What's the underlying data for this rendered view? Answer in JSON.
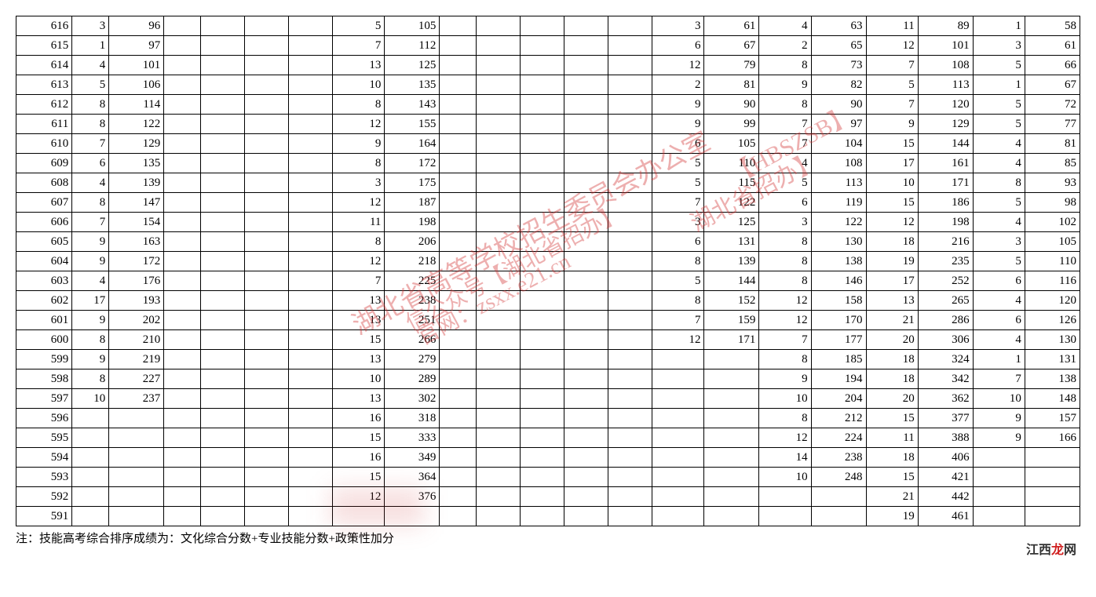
{
  "note": "注：技能高考综合排序成绩为：文化综合分数+专业技能分数+政策性加分",
  "col_widths_pct": [
    5.6,
    3.7,
    5.5,
    3.7,
    4.4,
    4.4,
    4.4,
    5.2,
    5.5,
    3.7,
    4.4,
    4.4,
    4.4,
    4.4,
    5.2,
    5.5,
    5.2,
    5.5,
    5.2,
    5.5,
    5.2,
    5.5
  ],
  "watermarks": {
    "w1": "湖北省高等学校招生委员会办公室",
    "w2": "信公众号【湖北省招办】",
    "w3": "官网：zsxx.e21.cn",
    "w4": "湖北省招办】",
    "w5": "【HBSZSB】"
  },
  "logo_text": {
    "jx": "江西",
    "long": "龙",
    "wang": "网"
  },
  "rows": [
    [
      "616",
      "3",
      "96",
      "",
      "",
      "",
      "",
      "5",
      "105",
      "",
      "",
      "",
      "",
      "",
      "3",
      "61",
      "4",
      "63",
      "11",
      "89",
      "1",
      "58"
    ],
    [
      "615",
      "1",
      "97",
      "",
      "",
      "",
      "",
      "7",
      "112",
      "",
      "",
      "",
      "",
      "",
      "6",
      "67",
      "2",
      "65",
      "12",
      "101",
      "3",
      "61"
    ],
    [
      "614",
      "4",
      "101",
      "",
      "",
      "",
      "",
      "13",
      "125",
      "",
      "",
      "",
      "",
      "",
      "12",
      "79",
      "8",
      "73",
      "7",
      "108",
      "5",
      "66"
    ],
    [
      "613",
      "5",
      "106",
      "",
      "",
      "",
      "",
      "10",
      "135",
      "",
      "",
      "",
      "",
      "",
      "2",
      "81",
      "9",
      "82",
      "5",
      "113",
      "1",
      "67"
    ],
    [
      "612",
      "8",
      "114",
      "",
      "",
      "",
      "",
      "8",
      "143",
      "",
      "",
      "",
      "",
      "",
      "9",
      "90",
      "8",
      "90",
      "7",
      "120",
      "5",
      "72"
    ],
    [
      "611",
      "8",
      "122",
      "",
      "",
      "",
      "",
      "12",
      "155",
      "",
      "",
      "",
      "",
      "",
      "9",
      "99",
      "7",
      "97",
      "9",
      "129",
      "5",
      "77"
    ],
    [
      "610",
      "7",
      "129",
      "",
      "",
      "",
      "",
      "9",
      "164",
      "",
      "",
      "",
      "",
      "",
      "6",
      "105",
      "7",
      "104",
      "15",
      "144",
      "4",
      "81"
    ],
    [
      "609",
      "6",
      "135",
      "",
      "",
      "",
      "",
      "8",
      "172",
      "",
      "",
      "",
      "",
      "",
      "5",
      "110",
      "4",
      "108",
      "17",
      "161",
      "4",
      "85"
    ],
    [
      "608",
      "4",
      "139",
      "",
      "",
      "",
      "",
      "3",
      "175",
      "",
      "",
      "",
      "",
      "",
      "5",
      "115",
      "5",
      "113",
      "10",
      "171",
      "8",
      "93"
    ],
    [
      "607",
      "8",
      "147",
      "",
      "",
      "",
      "",
      "12",
      "187",
      "",
      "",
      "",
      "",
      "",
      "7",
      "122",
      "6",
      "119",
      "15",
      "186",
      "5",
      "98"
    ],
    [
      "606",
      "7",
      "154",
      "",
      "",
      "",
      "",
      "11",
      "198",
      "",
      "",
      "",
      "",
      "",
      "3",
      "125",
      "3",
      "122",
      "12",
      "198",
      "4",
      "102"
    ],
    [
      "605",
      "9",
      "163",
      "",
      "",
      "",
      "",
      "8",
      "206",
      "",
      "",
      "",
      "",
      "",
      "6",
      "131",
      "8",
      "130",
      "18",
      "216",
      "3",
      "105"
    ],
    [
      "604",
      "9",
      "172",
      "",
      "",
      "",
      "",
      "12",
      "218",
      "",
      "",
      "",
      "",
      "",
      "8",
      "139",
      "8",
      "138",
      "19",
      "235",
      "5",
      "110"
    ],
    [
      "603",
      "4",
      "176",
      "",
      "",
      "",
      "",
      "7",
      "225",
      "",
      "",
      "",
      "",
      "",
      "5",
      "144",
      "8",
      "146",
      "17",
      "252",
      "6",
      "116"
    ],
    [
      "602",
      "17",
      "193",
      "",
      "",
      "",
      "",
      "13",
      "238",
      "",
      "",
      "",
      "",
      "",
      "8",
      "152",
      "12",
      "158",
      "13",
      "265",
      "4",
      "120"
    ],
    [
      "601",
      "9",
      "202",
      "",
      "",
      "",
      "",
      "13",
      "251",
      "",
      "",
      "",
      "",
      "",
      "7",
      "159",
      "12",
      "170",
      "21",
      "286",
      "6",
      "126"
    ],
    [
      "600",
      "8",
      "210",
      "",
      "",
      "",
      "",
      "15",
      "266",
      "",
      "",
      "",
      "",
      "",
      "12",
      "171",
      "7",
      "177",
      "20",
      "306",
      "4",
      "130"
    ],
    [
      "599",
      "9",
      "219",
      "",
      "",
      "",
      "",
      "13",
      "279",
      "",
      "",
      "",
      "",
      "",
      "",
      "",
      "8",
      "185",
      "18",
      "324",
      "1",
      "131"
    ],
    [
      "598",
      "8",
      "227",
      "",
      "",
      "",
      "",
      "10",
      "289",
      "",
      "",
      "",
      "",
      "",
      "",
      "",
      "9",
      "194",
      "18",
      "342",
      "7",
      "138"
    ],
    [
      "597",
      "10",
      "237",
      "",
      "",
      "",
      "",
      "13",
      "302",
      "",
      "",
      "",
      "",
      "",
      "",
      "",
      "10",
      "204",
      "20",
      "362",
      "10",
      "148"
    ],
    [
      "596",
      "",
      "",
      "",
      "",
      "",
      "",
      "16",
      "318",
      "",
      "",
      "",
      "",
      "",
      "",
      "",
      "8",
      "212",
      "15",
      "377",
      "9",
      "157"
    ],
    [
      "595",
      "",
      "",
      "",
      "",
      "",
      "",
      "15",
      "333",
      "",
      "",
      "",
      "",
      "",
      "",
      "",
      "12",
      "224",
      "11",
      "388",
      "9",
      "166"
    ],
    [
      "594",
      "",
      "",
      "",
      "",
      "",
      "",
      "16",
      "349",
      "",
      "",
      "",
      "",
      "",
      "",
      "",
      "14",
      "238",
      "18",
      "406",
      "",
      ""
    ],
    [
      "593",
      "",
      "",
      "",
      "",
      "",
      "",
      "15",
      "364",
      "",
      "",
      "",
      "",
      "",
      "",
      "",
      "10",
      "248",
      "15",
      "421",
      "",
      ""
    ],
    [
      "592",
      "",
      "",
      "",
      "",
      "",
      "",
      "12",
      "376",
      "",
      "",
      "",
      "",
      "",
      "",
      "",
      "",
      "",
      "21",
      "442",
      "",
      ""
    ],
    [
      "591",
      "",
      "",
      "",
      "",
      "",
      "",
      "",
      "",
      "",
      "",
      "",
      "",
      "",
      "",
      "",
      "",
      "",
      "19",
      "461",
      "",
      ""
    ]
  ]
}
